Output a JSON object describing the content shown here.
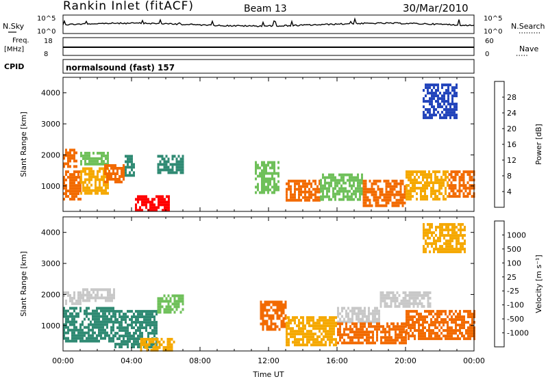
{
  "header": {
    "station": "Rankin Inlet (fitACF)",
    "beam": "Beam 13",
    "date": "30/Mar/2010"
  },
  "nsky_panel": {
    "left_label": "N.Sky",
    "right_label": "N.Search",
    "ticks_left": [
      "10^5",
      "10^0"
    ],
    "ticks_right": [
      "10^5",
      "10^0"
    ]
  },
  "freq_panel": {
    "left_label": "Freq.",
    "left_unit": "[MHz]",
    "ticks_left": [
      "18",
      "8"
    ],
    "right_label": "Nave",
    "ticks_right": [
      "60",
      "0"
    ]
  },
  "cpid_panel": {
    "label": "CPID",
    "text": "normalsound (fast) 157"
  },
  "chart_data": [
    {
      "type": "heatmap",
      "name": "power-panel",
      "ylabel": "Slant Range [km]",
      "yticks": [
        1000,
        2000,
        3000,
        4000
      ],
      "ylim": [
        180,
        4500
      ],
      "xlim_hours": [
        0,
        24
      ],
      "colorbar": {
        "label": "Power [dB]",
        "ticks": [
          "28",
          "24",
          "20",
          "16",
          "12",
          "8",
          "4"
        ],
        "colors": [
          "#0000ff",
          "#2244bb",
          "#2f8a73",
          "#6fc05a",
          "#f2e400",
          "#f5a800",
          "#f26a00",
          "#ff0000"
        ]
      },
      "regions": [
        {
          "t": [
            0.0,
            0.8
          ],
          "r": [
            1600,
            2200
          ],
          "color": "#f26a00"
        },
        {
          "t": [
            0.0,
            1.0
          ],
          "r": [
            600,
            1500
          ],
          "color": "#f26a00"
        },
        {
          "t": [
            1.0,
            2.6
          ],
          "r": [
            1700,
            2100
          ],
          "color": "#6fc05a"
        },
        {
          "t": [
            1.0,
            2.6
          ],
          "r": [
            800,
            1600
          ],
          "color": "#f5a800"
        },
        {
          "t": [
            2.4,
            3.6
          ],
          "r": [
            1100,
            1700
          ],
          "color": "#f26a00"
        },
        {
          "t": [
            3.6,
            4.2
          ],
          "r": [
            1300,
            2000
          ],
          "color": "#2f8a73"
        },
        {
          "t": [
            4.2,
            6.2
          ],
          "r": [
            200,
            700
          ],
          "color": "#ff0000"
        },
        {
          "t": [
            5.5,
            7.0
          ],
          "r": [
            1400,
            2000
          ],
          "color": "#2f8a73"
        },
        {
          "t": [
            11.2,
            12.6
          ],
          "r": [
            800,
            1800
          ],
          "color": "#6fc05a"
        },
        {
          "t": [
            13.0,
            15.0
          ],
          "r": [
            500,
            1200
          ],
          "color": "#f26a00"
        },
        {
          "t": [
            15.0,
            17.5
          ],
          "r": [
            600,
            1400
          ],
          "color": "#6fc05a"
        },
        {
          "t": [
            17.5,
            20.0
          ],
          "r": [
            400,
            1200
          ],
          "color": "#f26a00"
        },
        {
          "t": [
            20.0,
            22.5
          ],
          "r": [
            600,
            1500
          ],
          "color": "#f5a800"
        },
        {
          "t": [
            22.5,
            24.0
          ],
          "r": [
            700,
            1500
          ],
          "color": "#f26a00"
        },
        {
          "t": [
            21.0,
            23.0
          ],
          "r": [
            3200,
            4300
          ],
          "color": "#2244bb"
        }
      ]
    },
    {
      "type": "heatmap",
      "name": "velocity-panel",
      "ylabel": "Slant Range [km]",
      "yticks": [
        1000,
        2000,
        3000,
        4000
      ],
      "ylim": [
        180,
        4500
      ],
      "xlim_hours": [
        0,
        24
      ],
      "xticks": [
        "00:00",
        "04:00",
        "08:00",
        "12:00",
        "16:00",
        "20:00",
        "00:00"
      ],
      "xlabel": "Time UT",
      "colorbar": {
        "label": "Velocity [m s⁻¹]",
        "ticks": [
          "1000",
          "500",
          "100",
          "25",
          "-25",
          "-100",
          "-500",
          "-1000"
        ],
        "colors": [
          "#ff0000",
          "#f26a00",
          "#f5a800",
          "#f2d000",
          "#c8c8c8",
          "#6fc05a",
          "#2f8a73",
          "#1f55b5",
          "#0000ff"
        ]
      },
      "regions": [
        {
          "t": [
            0.0,
            1.0
          ],
          "r": [
            1700,
            2100
          ],
          "color": "#c8c8c8"
        },
        {
          "t": [
            0.0,
            3.0
          ],
          "r": [
            500,
            1600
          ],
          "color": "#2f8a73"
        },
        {
          "t": [
            1.0,
            3.0
          ],
          "r": [
            1800,
            2200
          ],
          "color": "#c8c8c8"
        },
        {
          "t": [
            3.0,
            5.5
          ],
          "r": [
            300,
            1500
          ],
          "color": "#2f8a73"
        },
        {
          "t": [
            5.5,
            7.0
          ],
          "r": [
            1400,
            2000
          ],
          "color": "#6fc05a"
        },
        {
          "t": [
            4.5,
            6.5
          ],
          "r": [
            200,
            600
          ],
          "color": "#f5a800"
        },
        {
          "t": [
            11.5,
            13.0
          ],
          "r": [
            900,
            1800
          ],
          "color": "#f26a00"
        },
        {
          "t": [
            13.0,
            16.0
          ],
          "r": [
            400,
            1300
          ],
          "color": "#f5a800"
        },
        {
          "t": [
            16.0,
            18.5
          ],
          "r": [
            1100,
            1600
          ],
          "color": "#c8c8c8"
        },
        {
          "t": [
            16.0,
            20.0
          ],
          "r": [
            400,
            1100
          ],
          "color": "#f26a00"
        },
        {
          "t": [
            18.5,
            21.5
          ],
          "r": [
            1600,
            2100
          ],
          "color": "#c8c8c8"
        },
        {
          "t": [
            20.0,
            24.0
          ],
          "r": [
            600,
            1500
          ],
          "color": "#f26a00"
        },
        {
          "t": [
            21.0,
            23.5
          ],
          "r": [
            3400,
            4300
          ],
          "color": "#f5a800"
        }
      ]
    }
  ]
}
